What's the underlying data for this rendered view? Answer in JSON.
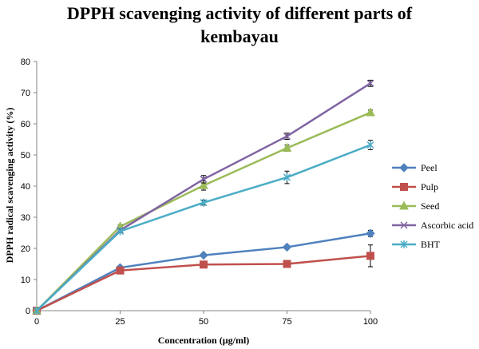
{
  "chart_data": {
    "type": "line",
    "title_line1": "DPPH scavenging  activity  of different parts of",
    "title_line2": "kembayau",
    "xlabel": "Concentration (µg/ml)",
    "ylabel": "DPPH radical scavenging activity (%)",
    "x": [
      0,
      25,
      50,
      75,
      100
    ],
    "x_tick_labels": [
      "0",
      "25",
      "50",
      "75",
      "100"
    ],
    "ylim": [
      0,
      80
    ],
    "y_ticks": [
      0,
      10,
      20,
      30,
      40,
      50,
      60,
      70,
      80
    ],
    "grid": false,
    "legend_position": "right",
    "series": [
      {
        "name": "Peel",
        "color": "#4f81bd",
        "marker": "diamond",
        "values": [
          0,
          13.8,
          17.8,
          20.4,
          24.8
        ],
        "errors": [
          0,
          0.5,
          0.5,
          0.6,
          1.0
        ]
      },
      {
        "name": "Pulp",
        "color": "#c0504d",
        "marker": "square",
        "values": [
          0,
          12.9,
          14.8,
          15.0,
          17.6
        ],
        "errors": [
          0,
          0.5,
          0.5,
          0.6,
          3.5
        ]
      },
      {
        "name": "Seed",
        "color": "#9bbb59",
        "marker": "triangle",
        "values": [
          0,
          27.0,
          40.2,
          52.2,
          63.6
        ],
        "errors": [
          0,
          0.5,
          1.5,
          1.0,
          0.8
        ]
      },
      {
        "name": "Ascorbic acid",
        "color": "#8064a2",
        "marker": "x",
        "values": [
          0,
          25.8,
          42.2,
          56.0,
          73.0
        ],
        "errors": [
          0,
          0.5,
          1.2,
          1.0,
          1.0
        ]
      },
      {
        "name": "BHT",
        "color": "#4bacc6",
        "marker": "star",
        "values": [
          0,
          25.5,
          34.7,
          42.8,
          53.2
        ],
        "errors": [
          0,
          0.5,
          0.8,
          2.0,
          1.5
        ]
      }
    ]
  }
}
